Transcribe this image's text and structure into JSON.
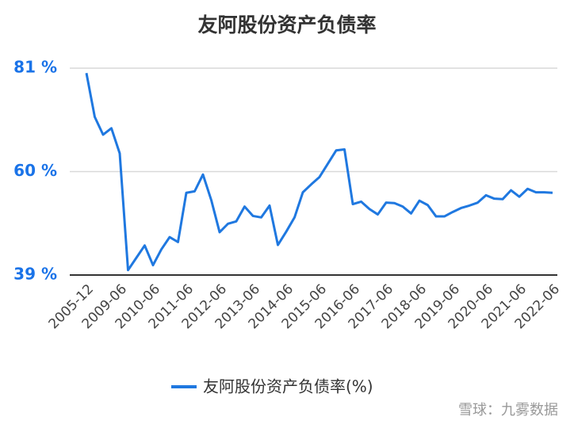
{
  "chart_data": {
    "type": "line",
    "title": "友阿股份资产负债率",
    "categories": [
      "2005-12",
      null,
      null,
      null,
      "2009-06",
      null,
      null,
      null,
      "2010-06",
      null,
      null,
      null,
      "2011-06",
      null,
      null,
      null,
      "2012-06",
      null,
      null,
      null,
      "2013-06",
      null,
      null,
      null,
      "2014-06",
      null,
      null,
      null,
      "2015-06",
      null,
      null,
      null,
      "2016-06",
      null,
      null,
      null,
      "2017-06",
      null,
      null,
      null,
      "2018-06",
      null,
      null,
      null,
      "2019-06",
      null,
      null,
      null,
      "2020-06",
      null,
      null,
      null,
      "2021-06",
      null,
      null,
      null,
      "2022-06"
    ],
    "series": [
      {
        "name": "友阿股份资产负债率(%)",
        "color": "#1f78e0",
        "values": [
          80.0,
          71.1,
          67.5,
          68.8,
          63.7,
          40.0,
          42.5,
          45.0,
          41.0,
          44.2,
          46.7,
          45.7,
          55.7,
          56.0,
          59.4,
          54.2,
          47.7,
          49.4,
          49.9,
          52.9,
          51.0,
          50.7,
          53.1,
          45.1,
          47.8,
          50.7,
          55.8,
          57.4,
          58.9,
          61.6,
          64.3,
          64.5,
          53.4,
          53.9,
          52.4,
          51.3,
          53.7,
          53.6,
          52.9,
          51.5,
          54.1,
          53.2,
          50.9,
          50.9,
          51.8,
          52.6,
          53.1,
          53.7,
          55.2,
          54.5,
          54.4,
          56.2,
          54.9,
          56.5,
          55.8,
          55.8,
          55.7
        ]
      }
    ],
    "ylim": [
      39,
      81
    ],
    "yticks": [
      {
        "value": 39,
        "label": "39 %"
      },
      {
        "value": 60,
        "label": "60 %"
      },
      {
        "value": 81,
        "label": "81 %"
      }
    ],
    "grid": true,
    "legend": "bottom",
    "watermark": "雪球：九雾数据"
  }
}
